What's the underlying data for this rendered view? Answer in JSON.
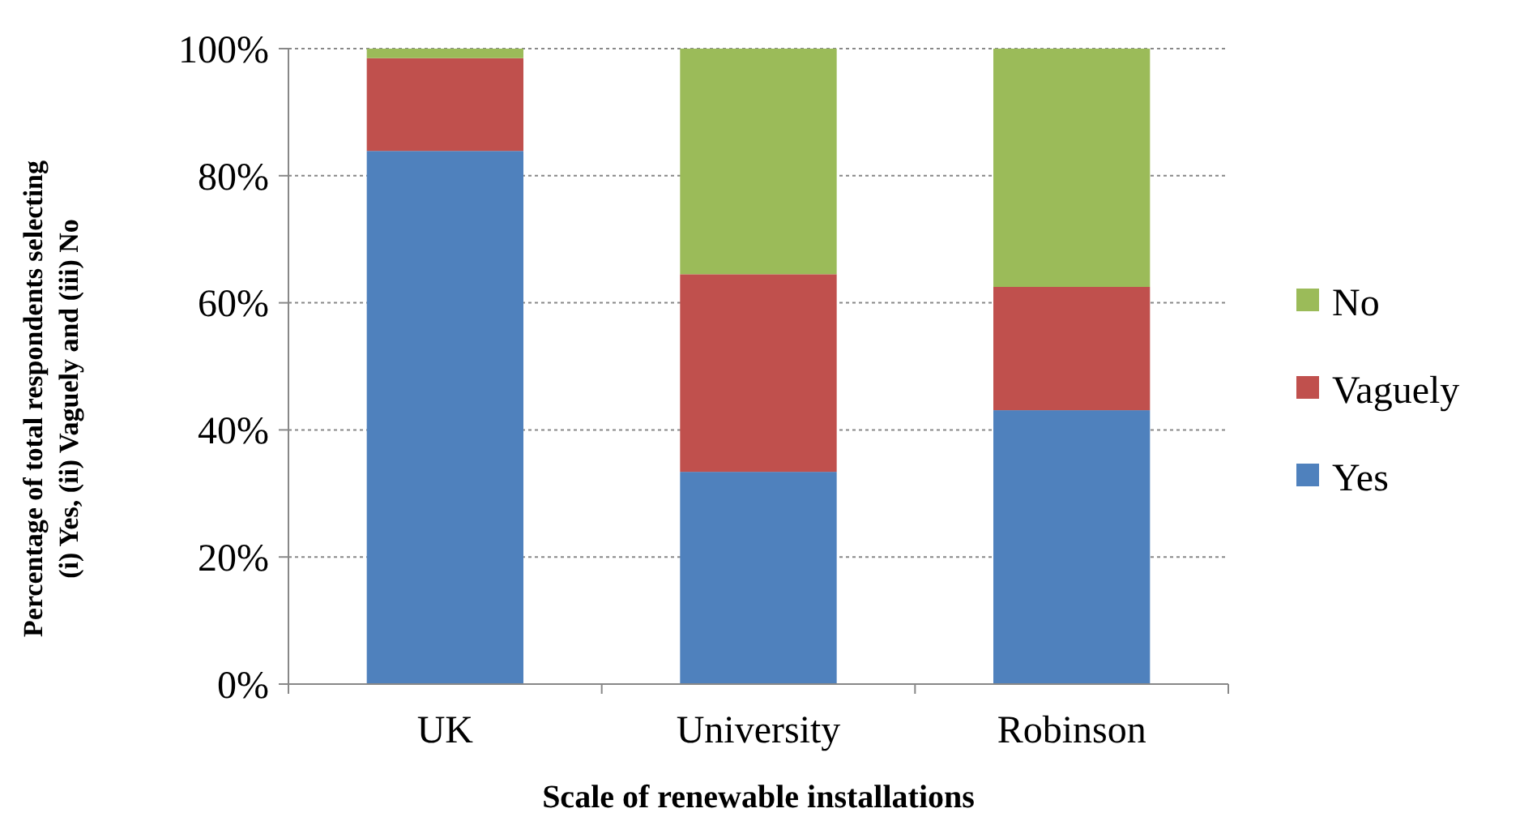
{
  "chart_data": {
    "type": "bar",
    "stacked": true,
    "xlabel": "Scale of renewable installations",
    "ylabel": "Percentage of total respondents selecting\n(i) Yes, (ii) Vaguely and (iii) No",
    "categories": [
      "UK",
      "University",
      "Robinson"
    ],
    "series": [
      {
        "name": "Yes",
        "color": "#4f81bd",
        "values": [
          83.9,
          33.4,
          43.1
        ]
      },
      {
        "name": "Vaguely",
        "color": "#c0504d",
        "values": [
          14.6,
          31.1,
          19.4
        ]
      },
      {
        "name": "No",
        "color": "#9bbb59",
        "values": [
          1.5,
          35.5,
          37.5
        ]
      }
    ],
    "ylim": [
      0,
      100
    ],
    "yticks": [
      {
        "value": 0,
        "label": "0%"
      },
      {
        "value": 20,
        "label": "20%"
      },
      {
        "value": 40,
        "label": "40%"
      },
      {
        "value": 60,
        "label": "60%"
      },
      {
        "value": 80,
        "label": "80%"
      },
      {
        "value": 100,
        "label": "100%"
      }
    ],
    "grid": "y",
    "legend": "right"
  }
}
